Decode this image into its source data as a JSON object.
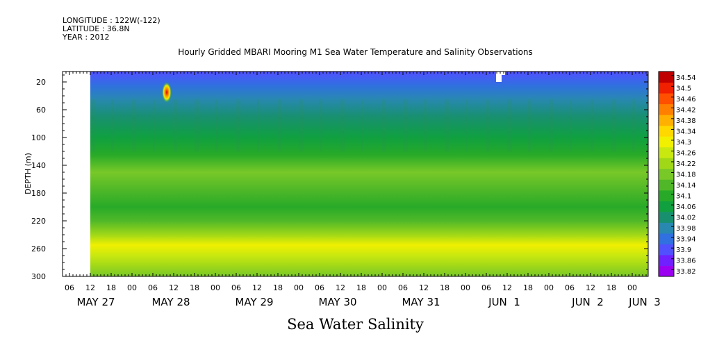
{
  "header": {
    "longitude": "LONGITUDE : 122W(-122)",
    "latitude": "LATITUDE : 36.8N",
    "year": "YEAR : 2012"
  },
  "chart_data": {
    "type": "heatmap",
    "title": "Hourly Gridded MBARI Mooring M1 Sea Water Temperature and Salinity Observations",
    "xlabel": "Sea Water Salinity",
    "ylabel": "DEPTH (m)",
    "ylim": [
      300,
      5
    ],
    "y_ticks": [
      20,
      60,
      100,
      140,
      180,
      220,
      260,
      300
    ],
    "x_hour_ticks": [
      "06",
      "12",
      "18",
      "00",
      "06",
      "12",
      "18",
      "00",
      "06",
      "12",
      "18",
      "00",
      "06",
      "12",
      "18",
      "00",
      "06",
      "12",
      "18",
      "00",
      "06",
      "12",
      "18",
      "00",
      "06",
      "12",
      "18",
      "00"
    ],
    "x_day_labels": [
      "MAY 27",
      "MAY 28",
      "MAY 29",
      "MAY 30",
      "MAY 31",
      "JUN  1",
      "JUN  2",
      "JUN  3"
    ],
    "data_start": "MAY 27 12:00",
    "data_end": "JUN 3 04:00",
    "colorbar_levels": [
      33.82,
      33.86,
      33.9,
      33.94,
      33.98,
      34.02,
      34.06,
      34.1,
      34.14,
      34.18,
      34.22,
      34.26,
      34.3,
      34.34,
      34.38,
      34.42,
      34.46,
      34.5,
      34.54
    ],
    "colorbar_labels": [
      "34.54",
      "34.5",
      "34.46",
      "34.42",
      "34.38",
      "34.34",
      "34.3",
      "34.26",
      "34.22",
      "34.18",
      "34.14",
      "34.1",
      "34.06",
      "34.02",
      "33.98",
      "33.94",
      "33.9",
      "33.86",
      "33.82"
    ],
    "depth_profile": [
      {
        "depth": 5,
        "salinity": 33.93
      },
      {
        "depth": 25,
        "salinity": 33.95
      },
      {
        "depth": 45,
        "salinity": 33.99
      },
      {
        "depth": 70,
        "salinity": 34.04
      },
      {
        "depth": 100,
        "salinity": 34.07
      },
      {
        "depth": 125,
        "salinity": 34.13
      },
      {
        "depth": 150,
        "salinity": 34.19
      },
      {
        "depth": 175,
        "salinity": 34.17
      },
      {
        "depth": 200,
        "salinity": 34.12
      },
      {
        "depth": 220,
        "salinity": 34.16
      },
      {
        "depth": 240,
        "salinity": 34.25
      },
      {
        "depth": 255,
        "salinity": 34.3
      },
      {
        "depth": 270,
        "salinity": 34.27
      },
      {
        "depth": 285,
        "salinity": 34.22
      },
      {
        "depth": 300,
        "salinity": 34.18
      }
    ],
    "anomalies": [
      {
        "time": "MAY 28 10:00",
        "depth": 35,
        "salinity": 34.54
      }
    ],
    "missing_regions": [
      "MAY 27 00:00 to MAY 27 12:00, all depths",
      "JUN 1 09:00, 5-20 m"
    ]
  }
}
